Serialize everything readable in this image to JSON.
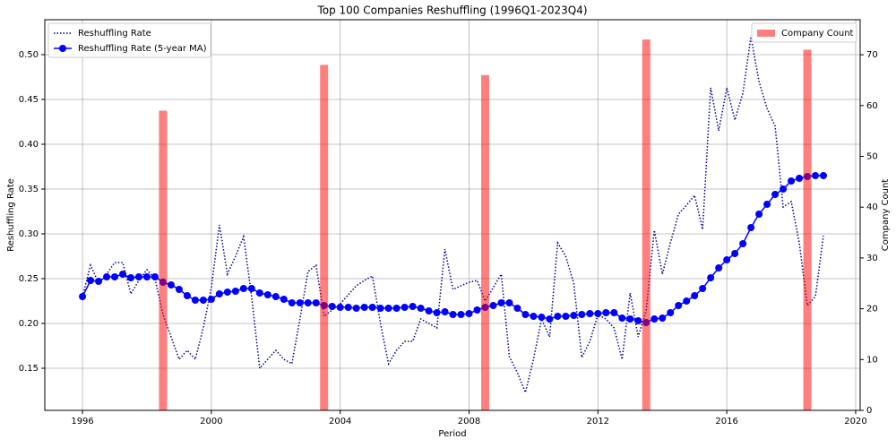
{
  "chart_data": {
    "type": "line",
    "title": "Top 100 Companies Reshuffling (1996Q1-2023Q4)",
    "xlabel": "Period",
    "ylabel": "Reshuffling Rate",
    "y2label": "Company Count",
    "x": [
      1996,
      1996.25,
      1996.5,
      1996.75,
      1997,
      1997.25,
      1997.5,
      1997.75,
      1998,
      1998.25,
      1998.5,
      1998.75,
      1999,
      1999.25,
      1999.5,
      1999.75,
      2000,
      2000.25,
      2000.5,
      2000.75,
      2001,
      2001.25,
      2001.5,
      2001.75,
      2002,
      2002.25,
      2002.5,
      2002.75,
      2003,
      2003.25,
      2003.5,
      2003.75,
      2004,
      2004.25,
      2004.5,
      2004.75,
      2005,
      2005.25,
      2005.5,
      2005.75,
      2006,
      2006.25,
      2006.5,
      2006.75,
      2007,
      2007.25,
      2007.5,
      2007.75,
      2008,
      2008.25,
      2008.5,
      2008.75,
      2009,
      2009.25,
      2009.5,
      2009.75,
      2010,
      2010.25,
      2010.5,
      2010.75,
      2011,
      2011.25,
      2011.5,
      2011.75,
      2012,
      2012.25,
      2012.5,
      2012.75,
      2013,
      2013.25,
      2013.5,
      2013.75,
      2014,
      2014.25,
      2014.5,
      2014.75,
      2015,
      2015.25,
      2015.5,
      2015.75,
      2016,
      2016.25,
      2016.5,
      2016.75,
      2017,
      2017.25,
      2017.5,
      2017.75,
      2018,
      2018.25,
      2018.5,
      2018.75,
      2019
    ],
    "series": [
      {
        "name": "Reshuffling Rate",
        "color": "#00008b",
        "style": "dotted",
        "values": [
          0.23,
          0.265,
          0.245,
          0.255,
          0.268,
          0.268,
          0.233,
          0.248,
          0.26,
          0.25,
          0.21,
          0.185,
          0.16,
          0.17,
          0.16,
          0.195,
          0.24,
          0.31,
          0.255,
          0.275,
          0.297,
          0.23,
          0.15,
          0.16,
          0.17,
          0.16,
          0.155,
          0.205,
          0.258,
          0.265,
          0.208,
          0.215,
          0.222,
          0.232,
          0.242,
          0.248,
          0.253,
          0.2,
          0.155,
          0.17,
          0.18,
          0.18,
          0.205,
          0.2,
          0.195,
          0.283,
          0.238,
          0.242,
          0.246,
          0.248,
          0.225,
          0.24,
          0.255,
          0.163,
          0.145,
          0.123,
          0.16,
          0.205,
          0.185,
          0.29,
          0.275,
          0.245,
          0.162,
          0.18,
          0.21,
          0.205,
          0.195,
          0.16,
          0.234,
          0.185,
          0.215,
          0.304,
          0.255,
          0.29,
          0.322,
          0.332,
          0.343,
          0.305,
          0.463,
          0.415,
          0.463,
          0.427,
          0.457,
          0.52,
          0.47,
          0.44,
          0.42,
          0.33,
          0.336,
          0.29,
          0.22,
          0.23,
          0.298
        ]
      },
      {
        "name": "Reshuffling Rate (5-year MA)",
        "color": "#0000ff",
        "style": "solid-marker",
        "values": [
          0.23,
          0.248,
          0.247,
          0.252,
          0.252,
          0.255,
          0.251,
          0.252,
          0.252,
          0.252,
          0.246,
          0.243,
          0.238,
          0.231,
          0.226,
          0.226,
          0.227,
          0.233,
          0.235,
          0.236,
          0.239,
          0.239,
          0.234,
          0.232,
          0.23,
          0.227,
          0.223,
          0.223,
          0.223,
          0.223,
          0.22,
          0.219,
          0.218,
          0.218,
          0.217,
          0.218,
          0.218,
          0.217,
          0.217,
          0.217,
          0.218,
          0.219,
          0.217,
          0.214,
          0.212,
          0.213,
          0.21,
          0.21,
          0.211,
          0.215,
          0.218,
          0.22,
          0.223,
          0.223,
          0.217,
          0.21,
          0.208,
          0.207,
          0.205,
          0.208,
          0.208,
          0.209,
          0.21,
          0.211,
          0.211,
          0.212,
          0.212,
          0.206,
          0.205,
          0.203,
          0.201,
          0.205,
          0.206,
          0.212,
          0.22,
          0.225,
          0.231,
          0.239,
          0.251,
          0.262,
          0.271,
          0.278,
          0.289,
          0.307,
          0.322,
          0.333,
          0.344,
          0.35,
          0.359,
          0.362,
          0.364,
          0.365,
          0.365
        ]
      },
      {
        "name": "Company Count",
        "type": "bar",
        "axis": "y2",
        "color": "#ff0000",
        "alpha": 0.5,
        "x": [
          1998.5,
          2003.5,
          2008.5,
          2013.5,
          2018.5
        ],
        "values": [
          59,
          68,
          66,
          73,
          71
        ]
      }
    ],
    "xlim": [
      1994.83,
      2020.14
    ],
    "xticks": [
      1996,
      2000,
      2004,
      2008,
      2012,
      2016,
      2020
    ],
    "ylim": [
      0.103,
      0.539
    ],
    "yticks": [
      0.15,
      {
        "value": 0.2,
        "label": "0.20"
      },
      0.25,
      {
        "value": 0.3,
        "label": "0.30"
      },
      0.35,
      {
        "value": 0.4,
        "label": "0.40"
      },
      0.45,
      {
        "value": 0.5,
        "label": "0.50"
      }
    ],
    "y2lim": [
      0,
      76.9
    ],
    "y2ticks": [
      0,
      10,
      20,
      30,
      40,
      50,
      60,
      70
    ],
    "grid": true,
    "legend": "upper left",
    "legend2": "upper right"
  }
}
